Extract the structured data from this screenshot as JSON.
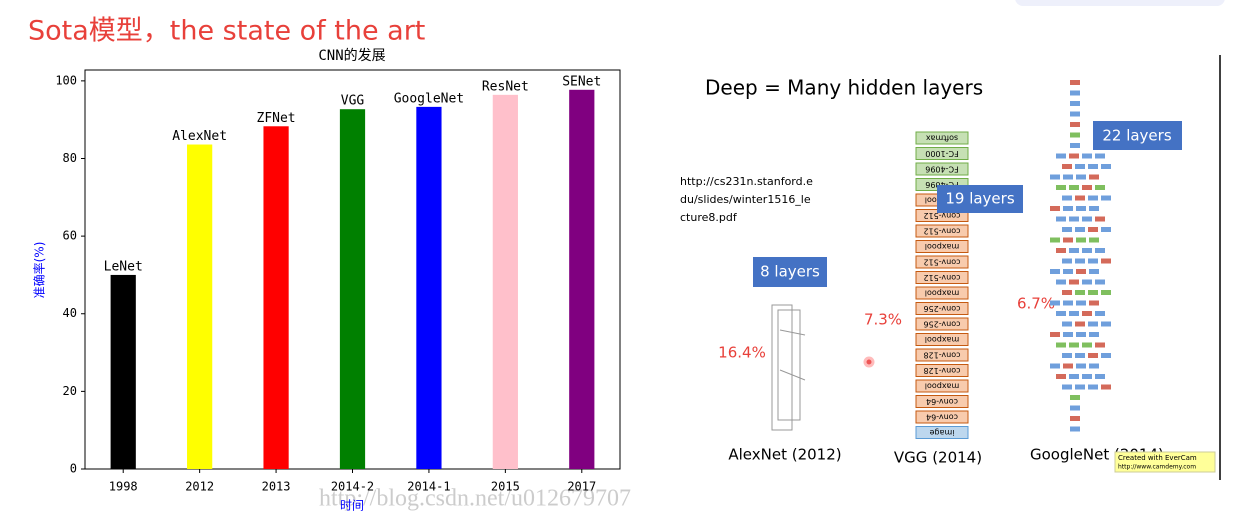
{
  "header": {
    "title": "Sota模型，the state of the art"
  },
  "chart_data": {
    "type": "bar",
    "title": "CNN的发展",
    "xlabel": "时间",
    "ylabel": "准确率(%)",
    "categories": [
      "1998",
      "2012",
      "2013",
      "2014-2",
      "2014-1",
      "2015",
      "2017"
    ],
    "values": [
      50,
      83.6,
      88.3,
      92.7,
      93.3,
      96.4,
      97.7
    ],
    "bar_labels": [
      "LeNet",
      "AlexNet",
      "ZFNet",
      "VGG",
      "GoogleNet",
      "ResNet",
      "SENet"
    ],
    "colors": [
      "black",
      "yellow",
      "red",
      "green",
      "blue",
      "pink",
      "purple"
    ],
    "ylim": [
      0,
      102.8
    ],
    "yticks": [
      0,
      20,
      40,
      60,
      80,
      100
    ],
    "grid": false
  },
  "watermark": "http://blog.csdn.net/u012679707",
  "slide": {
    "title": "Deep = Many hidden layers",
    "source": [
      "http://cs231n.stanford.e",
      "du/slides/winter1516_le",
      "cture8.pdf"
    ],
    "badges": [
      "8 layers",
      "19 layers",
      "22 layers"
    ],
    "errors": [
      "16.4%",
      "7.3%",
      "6.7%"
    ],
    "captions": [
      "AlexNet (2012)",
      "VGG (2014)",
      "GoogleNet (2014)"
    ],
    "vgg_layers": [
      "softmax",
      "FC-1000",
      "FC-4096",
      "FC-4096",
      "maxpool",
      "conv-512",
      "conv-512",
      "maxpool",
      "conv-512",
      "conv-512",
      "maxpool",
      "conv-256",
      "conv-256",
      "maxpool",
      "conv-128",
      "conv-128",
      "maxpool",
      "conv-64",
      "conv-64",
      "image"
    ],
    "evercam": [
      "Created with EverCam",
      "http://www.camdemy.com"
    ]
  }
}
